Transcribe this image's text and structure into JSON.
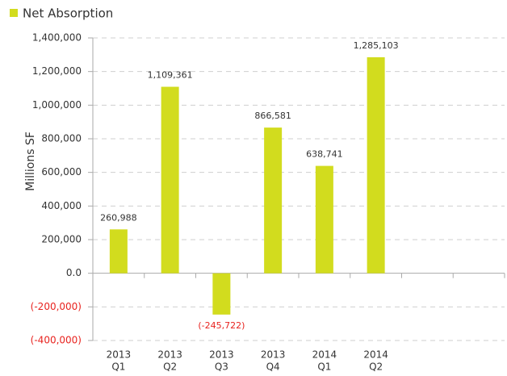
{
  "chart_data": {
    "type": "bar",
    "legend": "Net Absorption",
    "y_label": "Millions SF",
    "color": "#d2dc1e",
    "negative_color": "#e8231f",
    "categories": [
      [
        "2013",
        "Q1"
      ],
      [
        "2013",
        "Q2"
      ],
      [
        "2013",
        "Q3"
      ],
      [
        "2013",
        "Q4"
      ],
      [
        "2014",
        "Q1"
      ],
      [
        "2014",
        "Q2"
      ],
      null,
      null
    ],
    "values": [
      260988,
      1109361,
      -245722,
      866581,
      638741,
      1285103,
      null,
      null
    ],
    "value_labels": [
      "260,988",
      "1,109,361",
      "(-245,722)",
      "866,581",
      "638,741",
      "1,285,103",
      null,
      null
    ],
    "ylim": [
      -400000,
      1400000
    ],
    "yticks": [
      {
        "value": -400000,
        "label": "(-400,000)"
      },
      {
        "value": -200000,
        "label": "(-200,000)"
      },
      {
        "value": 0,
        "label": "0.0"
      },
      {
        "value": 200000,
        "label": "200,000"
      },
      {
        "value": 400000,
        "label": "400,000"
      },
      {
        "value": 600000,
        "label": "600,000"
      },
      {
        "value": 800000,
        "label": "800,000"
      },
      {
        "value": 1000000,
        "label": "1,000,000"
      },
      {
        "value": 1200000,
        "label": "1,200,000"
      },
      {
        "value": 1400000,
        "label": "1,400,000"
      }
    ],
    "grid": true
  }
}
